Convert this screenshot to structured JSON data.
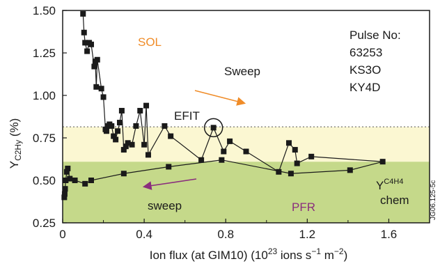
{
  "chart_data": {
    "type": "scatter",
    "xlabel": "Ion flux (at GIM10) (10",
    "xlabel_sup": "23",
    "xlabel_tail": " ions s",
    "xlabel_sup2": "−1",
    "xlabel_tail2": " m",
    "xlabel_sup3": "−2",
    "xlabel_end": ")",
    "ylabel": "Y",
    "ylabel_sub": "C2Hy",
    "ylabel_tail": " (%)",
    "xlim": [
      0,
      1.8
    ],
    "ylim": [
      0.25,
      1.5
    ],
    "xticks": [
      "0",
      "0.4",
      "0.8",
      "1.2",
      "1.6"
    ],
    "xtick_values": [
      0,
      0.4,
      0.8,
      1.2,
      1.6
    ],
    "yticks": [
      "0.25",
      "0.50",
      "0.75",
      "1.00",
      "1.25",
      "1.50"
    ],
    "ytick_values": [
      0.25,
      0.5,
      0.75,
      1.0,
      1.25,
      1.5
    ],
    "bands": [
      {
        "y0": 0.25,
        "y1": 0.61,
        "color": "#c5d98a"
      },
      {
        "y0": 0.61,
        "y1": 0.815,
        "color": "#fbf7d2"
      }
    ],
    "band_boundary_dotted_y": 0.815,
    "series": [
      {
        "marker": "square",
        "color": "#1a1a1a",
        "x": [
          0.1,
          0.105,
          0.11,
          0.12,
          0.13,
          0.14,
          0.155,
          0.16,
          0.165,
          0.17,
          0.19,
          0.2,
          0.21,
          0.215,
          0.22,
          0.23,
          0.24,
          0.25,
          0.26,
          0.27,
          0.28,
          0.29,
          0.3,
          0.31,
          0.32,
          0.34,
          0.36,
          0.38,
          0.4,
          0.41,
          0.42,
          0.5,
          0.53,
          0.68,
          0.74,
          0.79,
          0.82,
          0.9,
          1.06,
          1.11,
          1.14,
          1.15,
          1.22,
          1.57,
          1.41,
          1.12,
          0.78,
          0.52,
          0.3,
          0.14,
          0.11,
          0.06,
          0.035,
          0.025,
          0.02,
          0.015,
          0.012,
          0.01,
          0.008
        ],
        "y": [
          1.48,
          1.37,
          1.31,
          1.26,
          1.31,
          1.3,
          1.17,
          1.2,
          1.05,
          1.21,
          1.04,
          0.99,
          0.8,
          0.79,
          0.82,
          0.83,
          0.82,
          0.76,
          0.74,
          0.79,
          0.84,
          0.91,
          0.68,
          0.7,
          0.72,
          0.71,
          0.82,
          0.91,
          0.71,
          0.94,
          0.65,
          0.82,
          0.76,
          0.62,
          0.81,
          0.67,
          0.73,
          0.67,
          0.55,
          0.72,
          0.68,
          0.6,
          0.64,
          0.61,
          0.56,
          0.54,
          0.62,
          0.58,
          0.54,
          0.5,
          0.48,
          0.5,
          0.51,
          0.57,
          0.55,
          0.5,
          0.45,
          0.42,
          0.4
        ]
      }
    ],
    "highlighted_point": {
      "x": 0.74,
      "y": 0.81,
      "label": "EFIT"
    },
    "annotations": {
      "sol": {
        "text": "SOL",
        "color": "#f08c28"
      },
      "sweep_top": {
        "text": "Sweep",
        "color": "#1a1a1a"
      },
      "sweep_bottom": {
        "text": "sweep",
        "color": "#1a1a1a"
      },
      "pfr": {
        "text": "PFR",
        "color": "#8a2e7d"
      },
      "pulse_lines": [
        "Pulse No:",
        "63253",
        "KS3O",
        "KY4D"
      ],
      "ychem": "Y",
      "ychem_sup": "C4H4",
      "ychem_word": "chem",
      "figure_id": "JG06.125-5c"
    },
    "arrows": {
      "top_color": "#f08c28",
      "bottom_color": "#8a2e7d"
    }
  }
}
